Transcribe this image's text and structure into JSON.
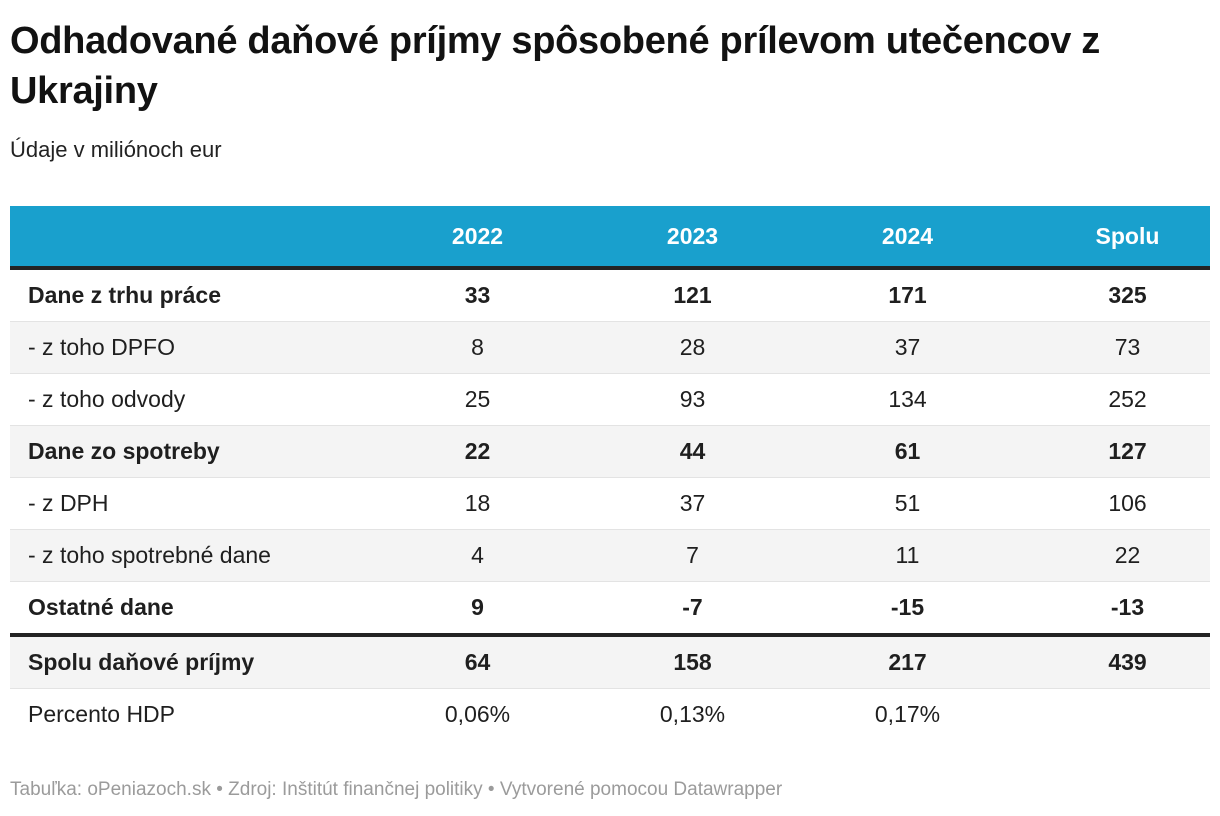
{
  "header": {
    "title": "Odhadované daňové príjmy spôsobené prílevom utečencov z Ukrajiny",
    "subtitle": "Údaje v miliónoch eur"
  },
  "footer": {
    "credit_line": "Tabuľka: oPeniazoch.sk • Zdroj: Inštitút finančnej politiky • Vytvorené pomocou Datawrapper"
  },
  "colors": {
    "header_bg": "#19a0cd",
    "header_text": "#ffffff",
    "stripe_bg": "#f4f4f4",
    "thick_border": "#232323",
    "row_separator": "#e3e3e3",
    "footer_text": "#9b9b9b"
  },
  "chart_data": {
    "type": "table",
    "title": "Odhadované daňové príjmy spôsobené prílevom utečencov z Ukrajiny",
    "subtitle": "Údaje v miliónoch eur",
    "columns": [
      "2022",
      "2023",
      "2024",
      "Spolu"
    ],
    "rows": [
      {
        "label": "Dane z trhu práce",
        "bold": true,
        "values": [
          "33",
          "121",
          "171",
          "325"
        ]
      },
      {
        "label": "- z toho DPFO",
        "bold": false,
        "values": [
          "8",
          "28",
          "37",
          "73"
        ]
      },
      {
        "label": "- z toho odvody",
        "bold": false,
        "values": [
          "25",
          "93",
          "134",
          "252"
        ]
      },
      {
        "label": "Dane zo spotreby",
        "bold": true,
        "values": [
          "22",
          "44",
          "61",
          "127"
        ]
      },
      {
        "label": "- z DPH",
        "bold": false,
        "values": [
          "18",
          "37",
          "51",
          "106"
        ]
      },
      {
        "label": "- z toho spotrebné dane",
        "bold": false,
        "values": [
          "4",
          "7",
          "11",
          "22"
        ]
      },
      {
        "label": "Ostatné dane",
        "bold": true,
        "values": [
          "9",
          "-7",
          "-15",
          "-13"
        ]
      },
      {
        "label": "Spolu daňové príjmy",
        "bold": true,
        "values": [
          "64",
          "158",
          "217",
          "439"
        ]
      },
      {
        "label": "Percento HDP",
        "bold": false,
        "values": [
          "0,06%",
          "0,13%",
          "0,17%",
          ""
        ]
      }
    ]
  }
}
